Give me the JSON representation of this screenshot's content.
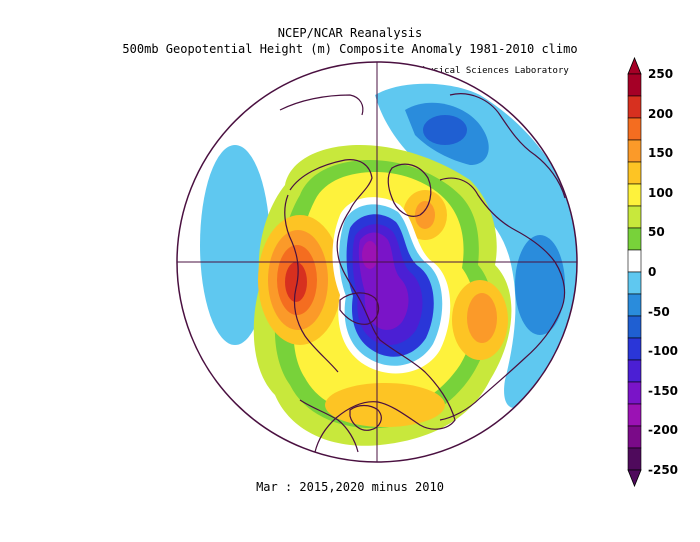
{
  "title": "NCEP/NCAR Reanalysis",
  "subtitle": "500mb Geopotential Height (m) Composite Anomaly 1981-2010 climo",
  "credit": "NOAA Physical Sciences Laboratory",
  "caption": "Mar : 2015,2020 minus 2010",
  "colorbar": {
    "labels": [
      "250",
      "200",
      "150",
      "100",
      "50",
      "0",
      "-50",
      "-100",
      "-150",
      "-200",
      "-250"
    ],
    "colors": [
      "#a50026",
      "#d7301f",
      "#f46d20",
      "#fb9a29",
      "#fdc424",
      "#fef23c",
      "#c8e83c",
      "#78d23a",
      "#ffffff",
      "#5fc8f0",
      "#2a8cdc",
      "#1f5fd2",
      "#2a36d8",
      "#4b1fd4",
      "#7a14c8",
      "#9b12b4",
      "#7a0a88",
      "#4f0a5c"
    ]
  },
  "map": {
    "projection": "north polar stereographic",
    "field": "500mb geopotential height composite anomaly",
    "units": "m",
    "colors": {
      "neg_light": "#5fc8f0",
      "neg_mid": "#2a8cdc",
      "neg_dark": "#1f5fd2",
      "neg_deep": "#2a36d8",
      "neg_violet": "#4b1fd4",
      "neg_purple": "#7a14c8",
      "pos_lime": "#c8e83c",
      "pos_green": "#78d23a",
      "pos_yellow": "#fef23c",
      "pos_gold": "#fdc424",
      "pos_orange": "#fb9a29",
      "pos_dorange": "#f46d20",
      "pos_red": "#d7301f",
      "outline": "#4a1040"
    }
  }
}
